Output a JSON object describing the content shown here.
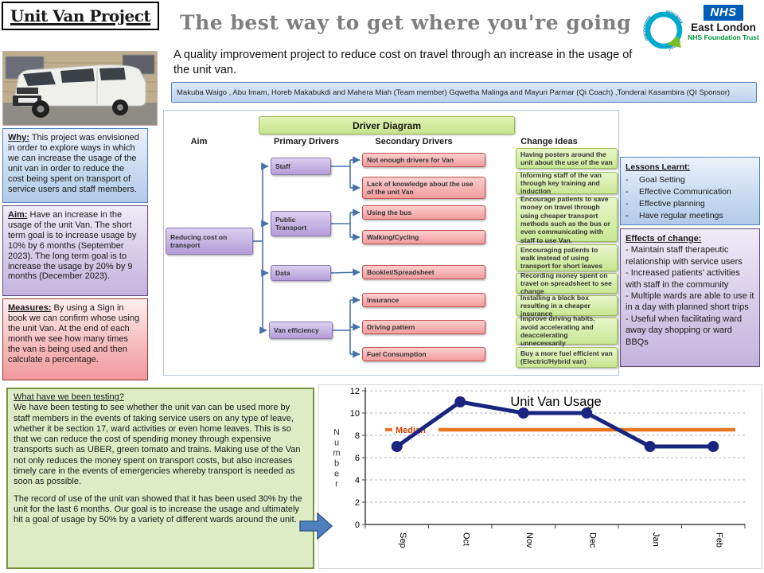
{
  "header": {
    "project_title": "Unit Van Project",
    "main_title": "The best way to get where you're going",
    "subtitle": "A quality improvement project to reduce cost on travel through an increase in the usage of the unit van.",
    "team": "Makuba Waigo , Abu Imam, Horeb Makabukdi  and Mahera Miah (Team member)   Gqwetha Malinga and Mayuri Parmar (Qi Coach) ,Tonderai Kasambira (QI Sponsor)",
    "q_logo_words": {
      "top": "assurance",
      "left": "improvement",
      "right": "control"
    },
    "nhs": {
      "brand": "NHS",
      "org": "East London",
      "org_sub": "NHS Foundation Trust"
    }
  },
  "left_panels": {
    "why": {
      "heading": "Why:",
      "text": "This project was envisioned in order to explore ways in which we can increase the usage of the unit van in order to reduce the cost being spent on transport of service users and staff members."
    },
    "aim": {
      "heading": "Aim:",
      "text": "Have an increase in the usage of the unit Van. The short term goal is to increase usage by 10% by 6 months (September 2023). The long term goal is to increase the usage by 20% by 9 months (December 2023)."
    },
    "measures": {
      "heading": "Measures:",
      "text": "By using a Sign in book we can confirm whose using the unit Van. At the end of each month we see how many times the van is being used and then calculate a percentage."
    }
  },
  "diagram": {
    "title": "Driver Diagram",
    "columns": [
      "Aim",
      "Primary Drivers",
      "Secondary Drivers",
      "Change Ideas"
    ],
    "aim_node": "Reducing cost on transport",
    "primary": [
      "Staff",
      "Public Transport",
      "Data",
      "Van efficiency"
    ],
    "secondary": [
      "Not enough drivers for Van",
      "Lack of knowledge about the use of the unit Van",
      "Using the bus",
      "Walking/Cycling",
      "Booklet/Spreadsheet",
      "Insurance",
      "Driving pattern",
      "Fuel Consumption"
    ],
    "changes": [
      "Having posters around the unit about the use of the van",
      "Informing staff of the van through key training and induction",
      "Encourage patients to save money on travel through using cheaper transport methods such as the bus or even communicating with staff to use Van.",
      "Encouraging patients to walk instead of using transport for short leaves",
      "Recording money spent on travel on spreadsheet to see change",
      "Installing a black box resulting in a cheaper insurance",
      "Improve driving habits, avoid accelerating and deaccelerating unnecessarily",
      "Buy a more fuel efficient van (Electric/Hybrid van)"
    ]
  },
  "right_panels": {
    "lessons": {
      "heading": "Lessons Learnt:",
      "items": [
        "Goal Setting",
        "Effective Communication",
        "Effective planning",
        "Have regular meetings"
      ]
    },
    "effects": {
      "heading": "Effects of change:",
      "items": [
        "Maintain staff therapeutic relationship  with service users",
        "Increased patients’ activities with staff in the community",
        "Multiple wards are able to use it in a day with planned short trips",
        "Useful when facilitating ward away day shopping or ward BBQs"
      ]
    }
  },
  "testing_panel": {
    "heading": "What have we been testing?",
    "para1": "We have been testing to see whether the unit van can be used more by staff members in the events of taking service users on any type of leave, whether it be section 17, ward activities or even home leaves. This is so that we can reduce the cost of spending money through expensive transports such as UBER, green tomato and trains. Making use of the Van not only reduces the money spent on transport costs, but also increases timely care in the events of emergencies whereby transport is needed as soon as possible.",
    "para2": "The record of use of the unit van showed that it has been used 30% by the unit for the last 6 months. Our goal is to increase the usage and ultimately hit a goal of usage by 50% by a variety of different wards around the unit."
  },
  "chart_data": {
    "type": "line",
    "title": "Unit Van Usage",
    "ylabel": "Number",
    "categories": [
      "Sep",
      "Oct",
      "Nov",
      "Dec",
      "Jan",
      "Feb"
    ],
    "series": [
      {
        "name": "Unit Van Usage",
        "values": [
          7,
          11,
          10,
          10,
          7,
          7
        ],
        "color": "#1a2580"
      }
    ],
    "median": {
      "label": "Median",
      "value": 8.5,
      "color": "#e87722",
      "label_color": "#d83b01"
    },
    "ylim": [
      0,
      12
    ],
    "ytick_step": 2,
    "grid": true,
    "legend_position": "none"
  },
  "colors": {
    "nhs_blue": "#005EB8",
    "nhs_green": "#009639",
    "q_cyan": "#00A9CE",
    "connector_blue": "#4672a8",
    "series_navy": "#1a2580",
    "median_orange": "#e87722"
  }
}
